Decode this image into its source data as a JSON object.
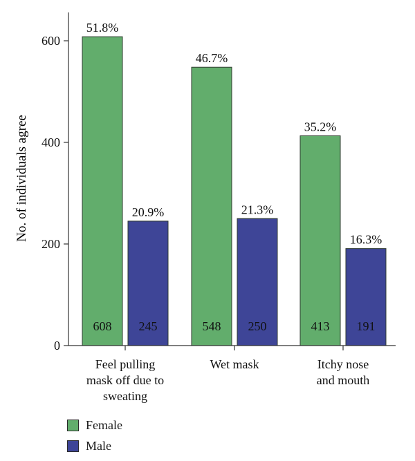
{
  "chart_data": {
    "type": "bar",
    "ylabel": "No. of individuals agree",
    "xlabel": "",
    "categories": [
      [
        "Feel pulling",
        "mask off due to",
        "sweating"
      ],
      [
        "Wet mask"
      ],
      [
        "Itchy nose",
        "and mouth"
      ]
    ],
    "series": [
      {
        "name": "Female",
        "color": "#62ad6c",
        "values": [
          608,
          548,
          413
        ],
        "value_labels": [
          "608",
          "548",
          "413"
        ],
        "percent_labels": [
          "51.8%",
          "46.7%",
          "35.2%"
        ]
      },
      {
        "name": "Male",
        "color": "#3e4597",
        "values": [
          245,
          250,
          191
        ],
        "value_labels": [
          "245",
          "250",
          "191"
        ],
        "percent_labels": [
          "20.9%",
          "21.3%",
          "16.3%"
        ]
      }
    ],
    "ylim": [
      0,
      700
    ],
    "yticks": [
      0,
      200,
      400,
      600
    ],
    "grid": false,
    "legend_position": "bottom-left"
  }
}
